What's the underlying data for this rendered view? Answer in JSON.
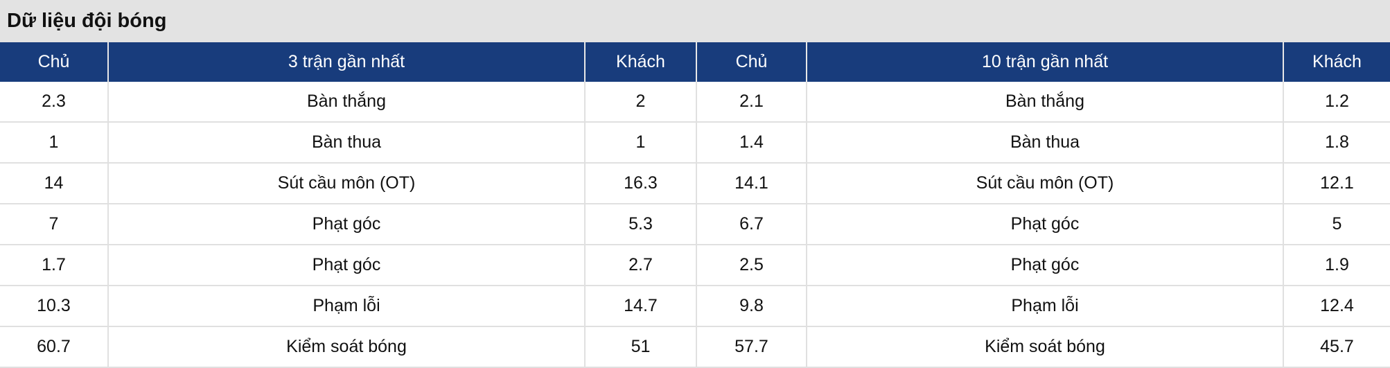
{
  "title": "Dữ liệu đội bóng",
  "headers": [
    "Chủ",
    "3 trận gần nhất",
    "Khách",
    "Chủ",
    "10 trận gần nhất",
    "Khách"
  ],
  "rows": [
    [
      "2.3",
      "Bàn thắng",
      "2",
      "2.1",
      "Bàn thắng",
      "1.2"
    ],
    [
      "1",
      "Bàn thua",
      "1",
      "1.4",
      "Bàn thua",
      "1.8"
    ],
    [
      "14",
      "Sút cầu môn (OT)",
      "16.3",
      "14.1",
      "Sút cầu môn (OT)",
      "12.1"
    ],
    [
      "7",
      "Phạt góc",
      "5.3",
      "6.7",
      "Phạt góc",
      "5"
    ],
    [
      "1.7",
      "Phạt góc",
      "2.7",
      "2.5",
      "Phạt góc",
      "1.9"
    ],
    [
      "10.3",
      "Phạm lỗi",
      "14.7",
      "9.8",
      "Phạm lỗi",
      "12.4"
    ],
    [
      "60.7",
      "Kiểm soát bóng",
      "51",
      "57.7",
      "Kiểm soát bóng",
      "45.7"
    ]
  ],
  "colors": {
    "header_bg": "#183c7c",
    "title_bg": "#e3e3e3"
  }
}
